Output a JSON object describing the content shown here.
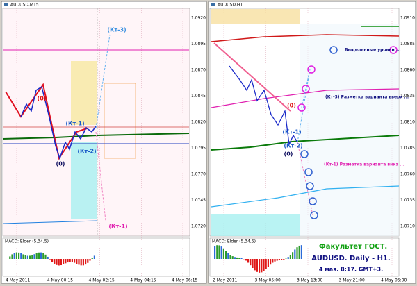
{
  "windows": [
    {
      "title": "AUDUSD,M15",
      "price_labels": [
        "1.0920",
        "1.0895",
        "1.0870",
        "1.0845",
        "1.0820",
        "1.0795",
        "1.0770",
        "1.0745",
        "1.0720"
      ],
      "time_labels": [
        "4 May 2011",
        "4 May 00:15",
        "4 May 02:15",
        "4 May 04:15",
        "4 May 06:15"
      ],
      "indicator": "MACD: Elder (5,34,5)",
      "annotations": [
        "(0)",
        "(Кт-3)",
        "(Кт-1)",
        "(Кт-2)",
        "(0)",
        "(Кт-1)"
      ]
    },
    {
      "title": "AUDUSD,H1",
      "price_labels": [
        "1.0910",
        "1.0885",
        "1.0860",
        "1.0835",
        "1.0810",
        "1.0785",
        "1.0760",
        "1.0735",
        "1.0710"
      ],
      "time_labels": [
        "2 May 2011",
        "3 May 05:00",
        "3 May 13:00",
        "3 May 21:00",
        "4 May 05:00"
      ],
      "indicator": "MACD: Elder (5,34,5)",
      "annotations": [
        "(0)",
        "(Кт-1)",
        "(Кт-2)",
        "(0)",
        "(Кт-3) Разметка варианта вверх ...",
        "(Кт-1) Разметка варианта вниз ...",
        "Выделенные уровни ..."
      ]
    }
  ],
  "overlay": {
    "line1": "Факультет ГОСТ.",
    "line2": "AUDUSD. Daily - H1.",
    "line3": "4 мая. 8:17. GMT+3."
  }
}
